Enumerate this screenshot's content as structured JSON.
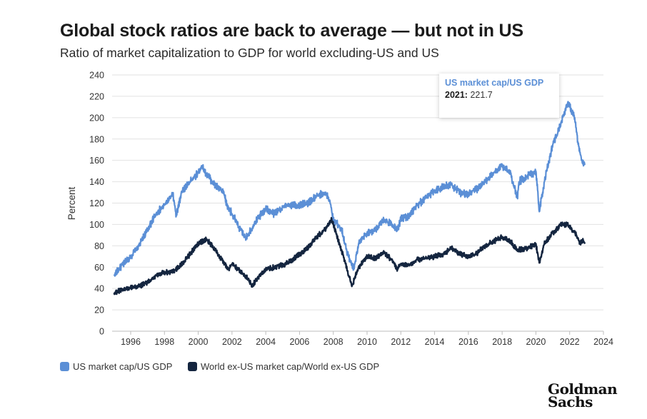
{
  "title": "Global stock ratios are back to average — but not in US",
  "subtitle": "Ratio of market capitalization to GDP for world excluding-US and US",
  "logo_text": "Goldman Sachs",
  "colors": {
    "us": "#5b8fd6",
    "world": "#14253f",
    "grid": "#e2e2e2"
  },
  "tooltip": {
    "series": "US market cap/US GDP",
    "year": "2021:",
    "value": "221.7"
  },
  "chart_data": {
    "type": "line",
    "title": "Global stock ratios are back to average — but not in US",
    "ylabel": "Percent",
    "xlabel": "",
    "ylim": [
      0,
      240
    ],
    "xlim": [
      1994.9,
      2024
    ],
    "yticks": [
      0,
      20,
      40,
      60,
      80,
      100,
      120,
      140,
      160,
      180,
      200,
      220,
      240
    ],
    "ytick_labels": [
      "0",
      "20",
      "40",
      "60",
      "80",
      "100",
      "120",
      "140",
      "160",
      "180",
      "200",
      "220",
      "240"
    ],
    "xticks": [
      1996,
      1998,
      2000,
      2002,
      2004,
      2006,
      2008,
      2010,
      2012,
      2014,
      2016,
      2018,
      2020,
      2022,
      2024
    ],
    "xtick_labels": [
      "1996",
      "1998",
      "2000",
      "2002",
      "2004",
      "2006",
      "2008",
      "2010",
      "2012",
      "2014",
      "2016",
      "2018",
      "2020",
      "2022",
      "2024"
    ],
    "grid": true,
    "legend_position": "bottom-left",
    "series": [
      {
        "name": "US market cap/US GDP",
        "color": "#5b8fd6",
        "x": [
          1995.0,
          1995.5,
          1996.0,
          1996.5,
          1997.0,
          1997.5,
          1998.0,
          1998.5,
          1998.7,
          1999.0,
          1999.5,
          2000.0,
          2000.2,
          2000.5,
          2001.0,
          2001.5,
          2001.7,
          2002.0,
          2002.5,
          2002.8,
          2003.0,
          2003.5,
          2004.0,
          2004.5,
          2005.0,
          2005.5,
          2006.0,
          2006.5,
          2007.0,
          2007.5,
          2007.8,
          2008.0,
          2008.5,
          2008.8,
          2009.2,
          2009.5,
          2010.0,
          2010.5,
          2011.0,
          2011.5,
          2011.8,
          2012.0,
          2012.5,
          2013.0,
          2013.5,
          2014.0,
          2014.5,
          2015.0,
          2015.5,
          2016.0,
          2016.5,
          2017.0,
          2017.5,
          2018.0,
          2018.5,
          2018.9,
          2019.0,
          2019.5,
          2020.0,
          2020.2,
          2020.5,
          2021.0,
          2021.5,
          2021.9,
          2022.0,
          2022.3,
          2022.5,
          2022.7,
          2022.9
        ],
        "values": [
          52,
          62,
          70,
          80,
          95,
          110,
          118,
          128,
          108,
          130,
          140,
          148,
          155,
          147,
          137,
          130,
          118,
          110,
          95,
          88,
          92,
          105,
          115,
          110,
          116,
          118,
          118,
          120,
          126,
          130,
          122,
          105,
          95,
          75,
          58,
          82,
          92,
          95,
          105,
          100,
          95,
          105,
          108,
          118,
          125,
          132,
          135,
          137,
          130,
          128,
          133,
          140,
          148,
          155,
          148,
          125,
          140,
          145,
          150,
          112,
          140,
          175,
          195,
          215,
          210,
          200,
          175,
          160,
          157
        ]
      },
      {
        "name": "World ex-US market cap/World ex-US GDP",
        "color": "#14253f",
        "x": [
          1995.0,
          1995.5,
          1996.0,
          1996.5,
          1997.0,
          1997.5,
          1998.0,
          1998.5,
          1999.0,
          1999.5,
          2000.0,
          2000.5,
          2001.0,
          2001.5,
          2001.8,
          2002.0,
          2002.5,
          2003.0,
          2003.2,
          2003.5,
          2004.0,
          2004.5,
          2005.0,
          2005.5,
          2006.0,
          2006.5,
          2007.0,
          2007.5,
          2007.9,
          2008.3,
          2008.7,
          2009.1,
          2009.5,
          2010.0,
          2010.5,
          2011.0,
          2011.5,
          2011.8,
          2012.0,
          2012.5,
          2013.0,
          2013.5,
          2014.0,
          2014.5,
          2015.0,
          2015.5,
          2016.0,
          2016.5,
          2017.0,
          2017.5,
          2018.0,
          2018.5,
          2018.9,
          2019.5,
          2020.0,
          2020.2,
          2020.5,
          2021.0,
          2021.5,
          2021.9,
          2022.0,
          2022.4,
          2022.6,
          2022.8,
          2022.9
        ],
        "values": [
          36,
          39,
          41,
          42,
          46,
          52,
          55,
          56,
          62,
          72,
          82,
          86,
          76,
          65,
          58,
          63,
          56,
          48,
          42,
          50,
          58,
          60,
          62,
          66,
          72,
          78,
          88,
          95,
          105,
          85,
          65,
          42,
          60,
          70,
          68,
          74,
          66,
          58,
          63,
          62,
          67,
          68,
          70,
          72,
          78,
          72,
          70,
          73,
          80,
          84,
          88,
          84,
          76,
          78,
          82,
          64,
          82,
          92,
          100,
          100,
          98,
          90,
          82,
          85,
          83
        ]
      }
    ]
  }
}
